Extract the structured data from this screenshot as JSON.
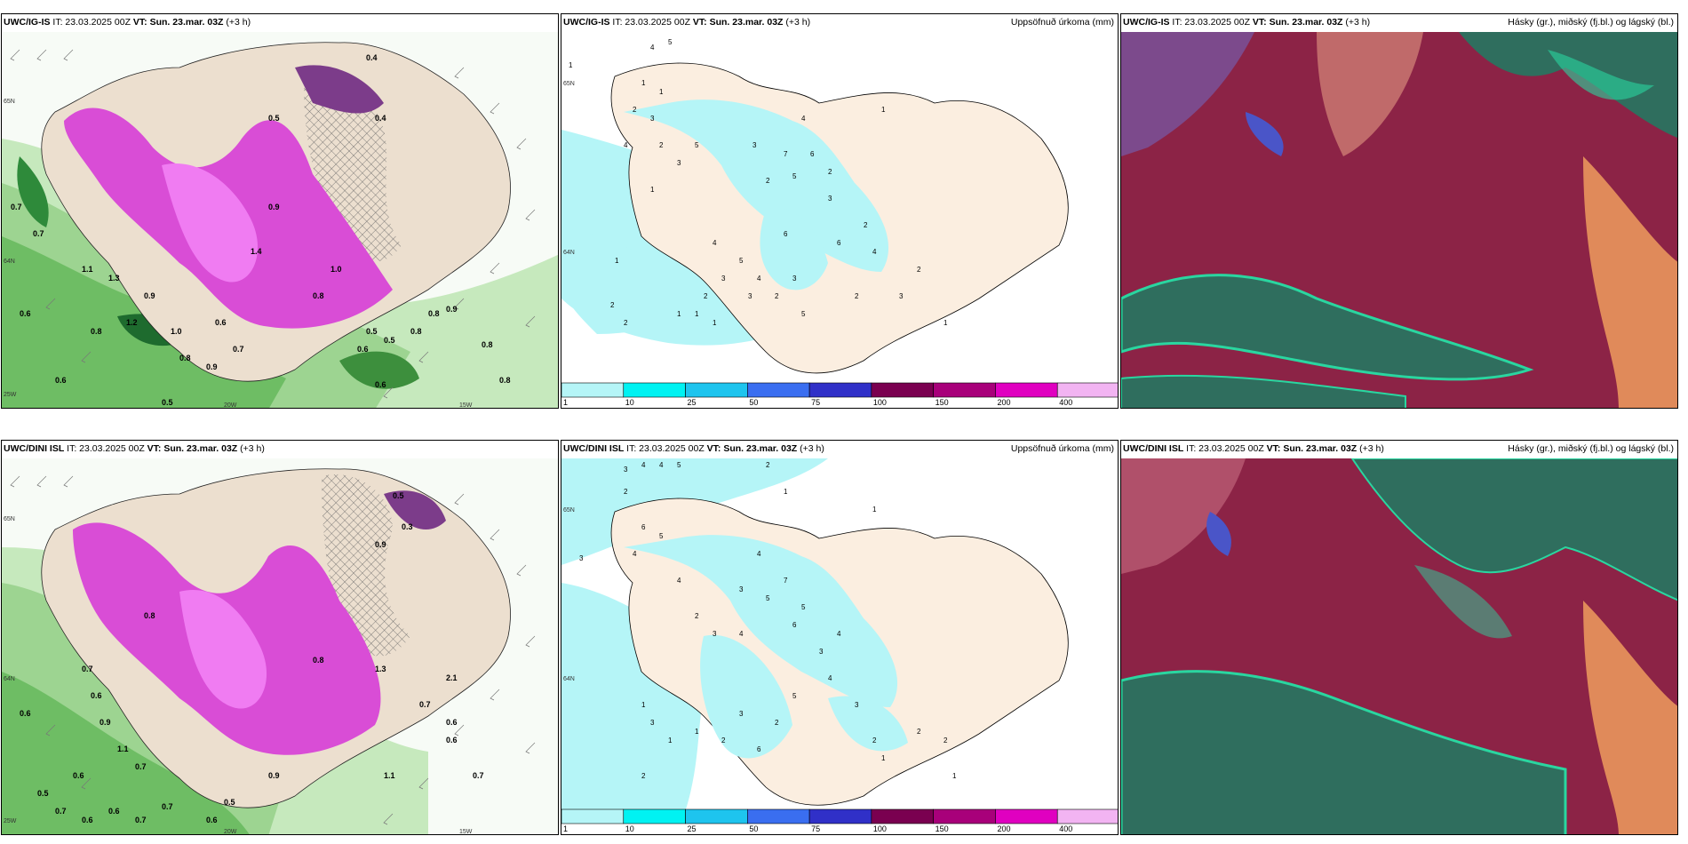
{
  "rows": [
    {
      "model": "UWC/IG-IS",
      "it": "IT: 23.03.2025 00Z",
      "vt_label": "VT:",
      "vt": "Sun. 23.mar. 03Z",
      "offset": "(+3 h)"
    },
    {
      "model": "UWC/DINI ISL",
      "it": "IT: 23.03.2025 00Z",
      "vt_label": "VT:",
      "vt": "Sun. 23.mar. 03Z",
      "offset": "(+3 h)"
    }
  ],
  "precip_title": "Uppsöfnuð úrkoma (mm)",
  "cloud_title": "Hásky (gr.), miðský (fj.bl.) og lágský (bl.)",
  "legend": {
    "ticks": [
      "1",
      "10",
      "25",
      "50",
      "75",
      "100",
      "150",
      "200",
      "400"
    ],
    "colors": [
      "#b5f5f7",
      "#00f2f2",
      "#1ec4ee",
      "#3a6ef0",
      "#3030c8",
      "#7a0050",
      "#a8007a",
      "#e000c0",
      "#f2b4f2"
    ]
  },
  "axis_labels": {
    "left_top": [
      "65N",
      "64N",
      "25W",
      "20W",
      "15W"
    ],
    "left_bottom": [
      "65N",
      "64N",
      "25W",
      "20W",
      "15W"
    ],
    "mid_top": [
      "65N",
      "64N"
    ],
    "mid_bottom": [
      "65N",
      "64N"
    ]
  },
  "numbers": {
    "wind_top": [
      "0.4",
      "0.4",
      "0.5",
      "0.7",
      "0.6",
      "1.1",
      "1.3",
      "0.8",
      "1.2",
      "0.9",
      "1.0",
      "0.8",
      "0.9",
      "0.7",
      "0.6",
      "0.8",
      "0.5",
      "0.6",
      "0.5",
      "0.8",
      "0.9",
      "0.8",
      "0.8",
      "0.7",
      "0.6",
      "0.5",
      "1.4",
      "0.9",
      "0.8",
      "1.0",
      "0.6"
    ],
    "wind_bottom": [
      "0.5",
      "0.3",
      "0.9",
      "0.8",
      "0.7",
      "0.6",
      "0.9",
      "1.1",
      "0.7",
      "0.6",
      "0.5",
      "0.7",
      "0.6",
      "0.6",
      "0.7",
      "0.7",
      "0.6",
      "0.5",
      "0.9",
      "1.3",
      "2.1",
      "0.6",
      "0.6",
      "0.7",
      "0.7",
      "0.6",
      "1.1",
      "0.8"
    ],
    "precip_top": [
      "4",
      "5",
      "1",
      "1",
      "2",
      "3",
      "1",
      "4",
      "2",
      "3",
      "5",
      "1",
      "7",
      "2",
      "3",
      "4",
      "5",
      "6",
      "6",
      "2",
      "1",
      "5",
      "4",
      "2",
      "3",
      "3",
      "4",
      "2",
      "3",
      "5",
      "6",
      "3",
      "2",
      "4",
      "2",
      "1",
      "2",
      "2",
      "3",
      "2",
      "1",
      "1",
      "1",
      "1"
    ],
    "precip_bottom": [
      "3",
      "4",
      "4",
      "5",
      "2",
      "3",
      "1",
      "2",
      "6",
      "5",
      "4",
      "4",
      "7",
      "5",
      "3",
      "4",
      "2",
      "3",
      "4",
      "6",
      "5",
      "3",
      "4",
      "1",
      "5",
      "2",
      "3",
      "2",
      "1",
      "6",
      "3",
      "4",
      "2",
      "1",
      "3",
      "1",
      "2",
      "1",
      "2",
      "2",
      "1"
    ]
  }
}
